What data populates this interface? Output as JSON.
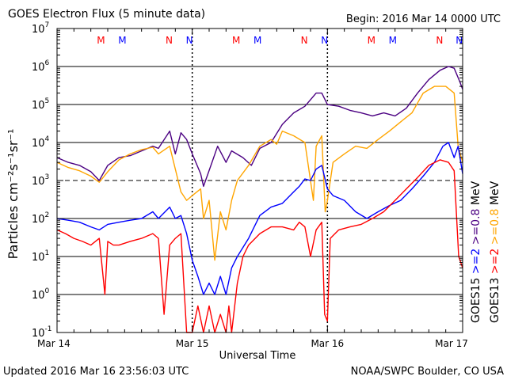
{
  "header": {
    "title": "GOES Electron Flux (5 minute data)",
    "begin": "Begin: 2016 Mar 14 0000 UTC"
  },
  "footer": {
    "updated": "Updated 2016 Mar 16 23:56:03 UTC",
    "source": "NOAA/SWPC Boulder, CO USA"
  },
  "colors": {
    "goes15_ge2": "#0000ff",
    "goes15_ge08": "#4b0082",
    "goes13_ge2": "#ff0000",
    "goes13_ge08": "#ffa500",
    "marker_m": "#ff0000",
    "marker_n": "#0000ff"
  },
  "chart_data": {
    "type": "line",
    "title": "GOES Electron Flux (5 minute data)",
    "xlabel": "Universal Time",
    "ylabel": "Particles cm⁻²s⁻¹sr⁻¹",
    "log_y": true,
    "xlim": [
      0,
      72
    ],
    "ylim": [
      0.1,
      10000000
    ],
    "x_ticks": [
      {
        "hour": 0,
        "label": "Mar 14"
      },
      {
        "hour": 24,
        "label": "Mar 15"
      },
      {
        "hour": 48,
        "label": "Mar 16"
      },
      {
        "hour": 72,
        "label": "Mar 17"
      }
    ],
    "y_ticks": [
      {
        "value": 0.1,
        "base": "10",
        "exp": "-1"
      },
      {
        "value": 1,
        "base": "10",
        "exp": "0"
      },
      {
        "value": 10,
        "base": "10",
        "exp": "1"
      },
      {
        "value": 100,
        "base": "10",
        "exp": "2"
      },
      {
        "value": 1000,
        "base": "10",
        "exp": "3"
      },
      {
        "value": 10000,
        "base": "10",
        "exp": "4"
      },
      {
        "value": 100000,
        "base": "10",
        "exp": "5"
      },
      {
        "value": 1000000,
        "base": "10",
        "exp": "6"
      },
      {
        "value": 10000000,
        "base": "10",
        "exp": "7"
      }
    ],
    "gridlines": [
      1,
      10,
      100,
      10000,
      100000,
      1000000
    ],
    "threshold": 1000,
    "day_lines": [
      24,
      48
    ],
    "markers": [
      {
        "hour": 7.8,
        "label": "M",
        "color": "red"
      },
      {
        "hour": 11.6,
        "label": "M",
        "color": "blue"
      },
      {
        "hour": 19.9,
        "label": "N",
        "color": "red"
      },
      {
        "hour": 23.5,
        "label": "N",
        "color": "blue"
      },
      {
        "hour": 31.8,
        "label": "M",
        "color": "red"
      },
      {
        "hour": 35.6,
        "label": "M",
        "color": "blue"
      },
      {
        "hour": 43.9,
        "label": "N",
        "color": "red"
      },
      {
        "hour": 47.5,
        "label": "N",
        "color": "blue"
      },
      {
        "hour": 55.8,
        "label": "M",
        "color": "red"
      },
      {
        "hour": 59.6,
        "label": "M",
        "color": "blue"
      },
      {
        "hour": 67.9,
        "label": "N",
        "color": "red"
      },
      {
        "hour": 71.4,
        "label": "N",
        "color": "blue"
      }
    ],
    "legend": [
      {
        "label": "GOES15",
        "parts": [
          {
            "text": ">=2",
            "color": "blue"
          },
          {
            "text": ">=0.8",
            "color": "indigo"
          },
          {
            "text": "MeV",
            "color": "black"
          }
        ]
      },
      {
        "label": "GOES13",
        "parts": [
          {
            "text": ">=2",
            "color": "red"
          },
          {
            "text": ">=0.8",
            "color": "orange"
          },
          {
            "text": "MeV",
            "color": "black"
          }
        ]
      }
    ],
    "series": [
      {
        "name": "GOES15 >=0.8 MeV",
        "color": "indigo",
        "points": [
          [
            0,
            4000
          ],
          [
            2,
            3000
          ],
          [
            4,
            2500
          ],
          [
            6,
            1700
          ],
          [
            7.5,
            1000
          ],
          [
            9,
            2500
          ],
          [
            11,
            4000
          ],
          [
            13,
            4500
          ],
          [
            15,
            6000
          ],
          [
            17,
            8000
          ],
          [
            18,
            7000
          ],
          [
            20,
            20000
          ],
          [
            21,
            5000
          ],
          [
            22,
            18000
          ],
          [
            23,
            12000
          ],
          [
            24,
            5000
          ],
          [
            25.5,
            1500
          ],
          [
            26,
            700
          ],
          [
            27.5,
            3000
          ],
          [
            28.5,
            8000
          ],
          [
            30,
            3000
          ],
          [
            31,
            6000
          ],
          [
            33,
            4000
          ],
          [
            34.5,
            2500
          ],
          [
            36,
            7000
          ],
          [
            38,
            10000
          ],
          [
            40,
            30000
          ],
          [
            42,
            60000
          ],
          [
            44,
            90000
          ],
          [
            46,
            200000
          ],
          [
            47,
            200000
          ],
          [
            48,
            100000
          ],
          [
            50,
            90000
          ],
          [
            52,
            70000
          ],
          [
            54,
            60000
          ],
          [
            56,
            50000
          ],
          [
            58,
            60000
          ],
          [
            60,
            50000
          ],
          [
            62,
            80000
          ],
          [
            64,
            200000
          ],
          [
            66,
            450000
          ],
          [
            68,
            800000
          ],
          [
            69.5,
            1000000
          ],
          [
            70.5,
            900000
          ],
          [
            71.5,
            400000
          ],
          [
            72,
            250000
          ]
        ]
      },
      {
        "name": "GOES13 >=0.8 MeV",
        "color": "orange",
        "points": [
          [
            0,
            3000
          ],
          [
            2,
            2200
          ],
          [
            4,
            1800
          ],
          [
            6,
            1300
          ],
          [
            7.5,
            900
          ],
          [
            9,
            1700
          ],
          [
            11,
            3500
          ],
          [
            13,
            5000
          ],
          [
            15,
            6500
          ],
          [
            17,
            7500
          ],
          [
            18,
            5000
          ],
          [
            20,
            8000
          ],
          [
            21,
            2000
          ],
          [
            22,
            500
          ],
          [
            23,
            300
          ],
          [
            24,
            400
          ],
          [
            25.5,
            600
          ],
          [
            26,
            100
          ],
          [
            27,
            300
          ],
          [
            28,
            8
          ],
          [
            29,
            150
          ],
          [
            30,
            50
          ],
          [
            31,
            300
          ],
          [
            32,
            1000
          ],
          [
            34,
            2500
          ],
          [
            36,
            8000
          ],
          [
            38,
            12000
          ],
          [
            39,
            9000
          ],
          [
            40,
            20000
          ],
          [
            42,
            15000
          ],
          [
            44,
            10000
          ],
          [
            45.5,
            300
          ],
          [
            46,
            8000
          ],
          [
            47,
            15000
          ],
          [
            47.6,
            150
          ],
          [
            48,
            300
          ],
          [
            49,
            3000
          ],
          [
            51,
            5000
          ],
          [
            53,
            8000
          ],
          [
            55,
            7000
          ],
          [
            57,
            12000
          ],
          [
            59,
            20000
          ],
          [
            61,
            35000
          ],
          [
            63,
            60000
          ],
          [
            65,
            200000
          ],
          [
            67,
            300000
          ],
          [
            69,
            300000
          ],
          [
            70.5,
            200000
          ],
          [
            71.2,
            8000
          ],
          [
            72,
            3000
          ]
        ]
      },
      {
        "name": "GOES15 >=2 MeV",
        "color": "blue",
        "points": [
          [
            0,
            100
          ],
          [
            2,
            90
          ],
          [
            4,
            80
          ],
          [
            6,
            60
          ],
          [
            7.5,
            50
          ],
          [
            9,
            70
          ],
          [
            11,
            80
          ],
          [
            13,
            90
          ],
          [
            15,
            100
          ],
          [
            17,
            150
          ],
          [
            18,
            100
          ],
          [
            20,
            200
          ],
          [
            21,
            100
          ],
          [
            22,
            120
          ],
          [
            23,
            40
          ],
          [
            24,
            8
          ],
          [
            25,
            3
          ],
          [
            26,
            1
          ],
          [
            27,
            2
          ],
          [
            28,
            1
          ],
          [
            29,
            3
          ],
          [
            30,
            1
          ],
          [
            31,
            5
          ],
          [
            32,
            10
          ],
          [
            34,
            30
          ],
          [
            36,
            120
          ],
          [
            38,
            200
          ],
          [
            40,
            250
          ],
          [
            42,
            500
          ],
          [
            43,
            700
          ],
          [
            44,
            1100
          ],
          [
            45,
            1000
          ],
          [
            46,
            2000
          ],
          [
            47,
            2500
          ],
          [
            48,
            600
          ],
          [
            49,
            400
          ],
          [
            51,
            300
          ],
          [
            53,
            150
          ],
          [
            55,
            100
          ],
          [
            57,
            150
          ],
          [
            59,
            220
          ],
          [
            61,
            300
          ],
          [
            63,
            600
          ],
          [
            65,
            1300
          ],
          [
            67,
            3000
          ],
          [
            68.5,
            8000
          ],
          [
            69.5,
            10000
          ],
          [
            70.5,
            4000
          ],
          [
            71.2,
            8000
          ],
          [
            72,
            1500
          ]
        ]
      },
      {
        "name": "GOES13 >=2 MeV",
        "color": "red",
        "points": [
          [
            0,
            50
          ],
          [
            1.5,
            40
          ],
          [
            3,
            30
          ],
          [
            4.5,
            25
          ],
          [
            6,
            20
          ],
          [
            7.5,
            30
          ],
          [
            8.5,
            1
          ],
          [
            9,
            25
          ],
          [
            10,
            20
          ],
          [
            11,
            20
          ],
          [
            13,
            25
          ],
          [
            15,
            30
          ],
          [
            17,
            40
          ],
          [
            18,
            30
          ],
          [
            19,
            0.3
          ],
          [
            20,
            20
          ],
          [
            21,
            30
          ],
          [
            22,
            40
          ],
          [
            23,
            0.1
          ],
          [
            24,
            0.1
          ],
          [
            25,
            0.5
          ],
          [
            26,
            0.1
          ],
          [
            27,
            0.5
          ],
          [
            28,
            0.1
          ],
          [
            29,
            0.3
          ],
          [
            30,
            0.1
          ],
          [
            30.5,
            0.5
          ],
          [
            31,
            0.1
          ],
          [
            32,
            2
          ],
          [
            33,
            10
          ],
          [
            34,
            20
          ],
          [
            36,
            40
          ],
          [
            38,
            60
          ],
          [
            40,
            60
          ],
          [
            42,
            50
          ],
          [
            43,
            80
          ],
          [
            44,
            60
          ],
          [
            45,
            10
          ],
          [
            46,
            50
          ],
          [
            47,
            80
          ],
          [
            47.5,
            0.3
          ],
          [
            48,
            0.2
          ],
          [
            48.5,
            30
          ],
          [
            50,
            50
          ],
          [
            52,
            60
          ],
          [
            54,
            70
          ],
          [
            56,
            100
          ],
          [
            58,
            150
          ],
          [
            60,
            300
          ],
          [
            62,
            600
          ],
          [
            64,
            1200
          ],
          [
            66,
            2500
          ],
          [
            68,
            3500
          ],
          [
            69.5,
            3000
          ],
          [
            70.5,
            1800
          ],
          [
            71.3,
            10
          ],
          [
            72,
            5
          ]
        ]
      }
    ]
  }
}
